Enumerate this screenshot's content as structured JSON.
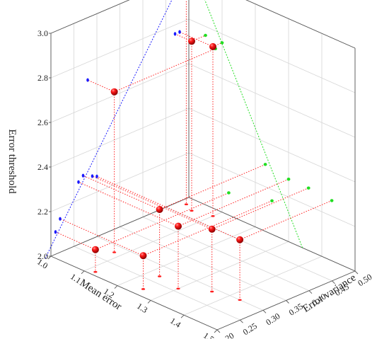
{
  "chart_data": {
    "type": "scatter3d",
    "title": "",
    "xlabel": "Mean error",
    "ylabel": "Error variance",
    "zlabel": "Error threshold",
    "xlim": [
      1.0,
      1.5
    ],
    "ylim": [
      0.2,
      0.5
    ],
    "zlim": [
      2.0,
      3.0
    ],
    "x_ticks": [
      "1.0",
      "1.1",
      "1.2",
      "1.3",
      "1.4",
      "1.5"
    ],
    "y_ticks": [
      "0.20",
      "0.25",
      "0.30",
      "0.35",
      "0.40",
      "0.45",
      "0.50"
    ],
    "z_ticks": [
      "2.0",
      "2.2",
      "2.4",
      "2.6",
      "2.8",
      "3.0"
    ],
    "grid": true,
    "points": [
      {
        "x": 1.12,
        "y": 0.21,
        "z": 2.1
      },
      {
        "x": 1.25,
        "y": 0.22,
        "z": 2.15
      },
      {
        "x": 1.23,
        "y": 0.27,
        "z": 2.3
      },
      {
        "x": 1.3,
        "y": 0.26,
        "z": 2.28
      },
      {
        "x": 1.36,
        "y": 0.29,
        "z": 2.28
      },
      {
        "x": 1.43,
        "y": 0.3,
        "z": 2.27
      },
      {
        "x": 1.08,
        "y": 0.28,
        "z": 2.72
      },
      {
        "x": 1.05,
        "y": 0.47,
        "z": 2.76
      },
      {
        "x": 1.1,
        "y": 0.48,
        "z": 2.76
      },
      {
        "x": 1.02,
        "y": 0.48,
        "z": 3.0
      }
    ],
    "series_colors": {
      "points": "#e0000a",
      "projection_x": "#1a1aff",
      "projection_y": "#22dd22",
      "droplines": "#ff2020"
    }
  }
}
